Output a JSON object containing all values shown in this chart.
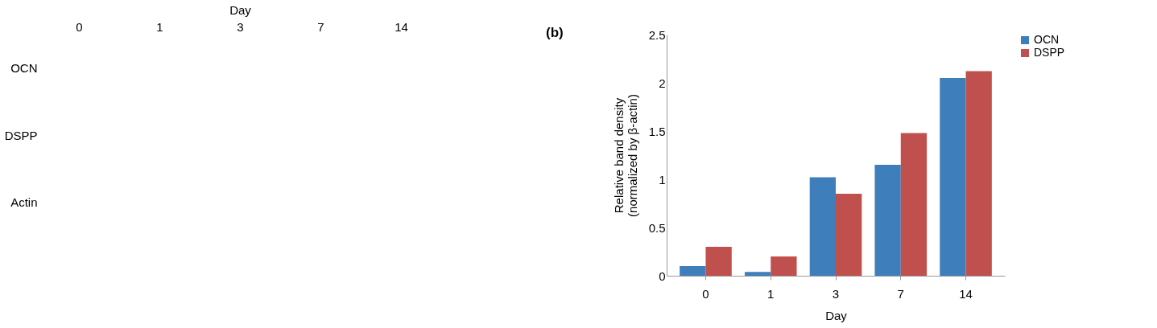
{
  "chart_data": [
    {
      "type": "other",
      "xlabel": "Day",
      "categories": [
        "0",
        "1",
        "3",
        "7",
        "14"
      ],
      "y_categories": [
        "OCN",
        "DSPP",
        "Actin"
      ]
    },
    {
      "type": "bar",
      "annotations": [
        "(b)"
      ],
      "xlabel": "Day",
      "ylabel": "Relative band density\n(normalized by β-actin)",
      "categories": [
        "0",
        "1",
        "3",
        "7",
        "14"
      ],
      "series": [
        {
          "name": "OCN",
          "color": "#3d7ebb",
          "values": [
            0.1,
            0.04,
            1.02,
            1.15,
            2.05
          ]
        },
        {
          "name": "DSPP",
          "color": "#c0504d",
          "values": [
            0.3,
            0.2,
            0.85,
            1.48,
            2.12
          ]
        }
      ],
      "ylim": [
        0,
        2.5
      ],
      "yticks": [
        0,
        0.5,
        1,
        1.5,
        2,
        2.5
      ],
      "grid": false,
      "legend": "right"
    }
  ]
}
